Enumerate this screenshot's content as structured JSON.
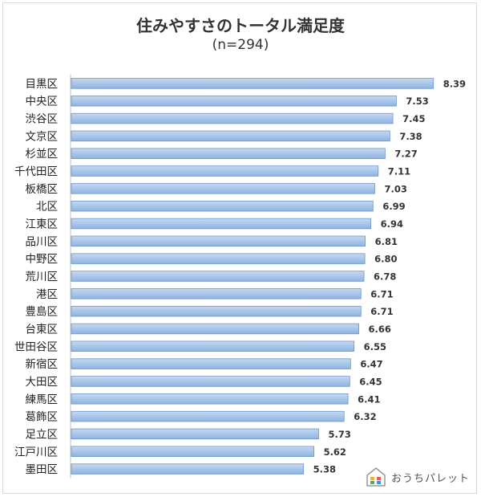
{
  "chart_data": {
    "type": "bar",
    "orientation": "horizontal",
    "title": "住みやすさのトータル満足度",
    "subtitle": "(n=294)",
    "categories": [
      "目黒区",
      "中央区",
      "渋谷区",
      "文京区",
      "杉並区",
      "千代田区",
      "板橋区",
      "北区",
      "江東区",
      "品川区",
      "中野区",
      "荒川区",
      "港区",
      "豊島区",
      "台東区",
      "世田谷区",
      "新宿区",
      "大田区",
      "練馬区",
      "葛飾区",
      "足立区",
      "江戸川区",
      "墨田区"
    ],
    "values": [
      8.39,
      7.53,
      7.45,
      7.38,
      7.27,
      7.11,
      7.03,
      6.99,
      6.94,
      6.81,
      6.8,
      6.78,
      6.71,
      6.71,
      6.66,
      6.55,
      6.47,
      6.45,
      6.41,
      6.32,
      5.73,
      5.62,
      5.38
    ],
    "value_labels": [
      "8.39",
      "7.53",
      "7.45",
      "7.38",
      "7.27",
      "7.11",
      "7.03",
      "6.99",
      "6.94",
      "6.81",
      "6.80",
      "6.78",
      "6.71",
      "6.71",
      "6.66",
      "6.55",
      "6.47",
      "6.45",
      "6.41",
      "6.32",
      "5.73",
      "5.62",
      "5.38"
    ],
    "xlim": [
      0,
      8.6
    ],
    "grid": false,
    "legend": "none",
    "colors": {
      "bar_top": "#c6d9f1",
      "bar_bottom": "#8db3e2",
      "bar_edge": "#6f96c9"
    }
  },
  "logo": {
    "text": "おうちパレット",
    "icon": "house-icon"
  }
}
